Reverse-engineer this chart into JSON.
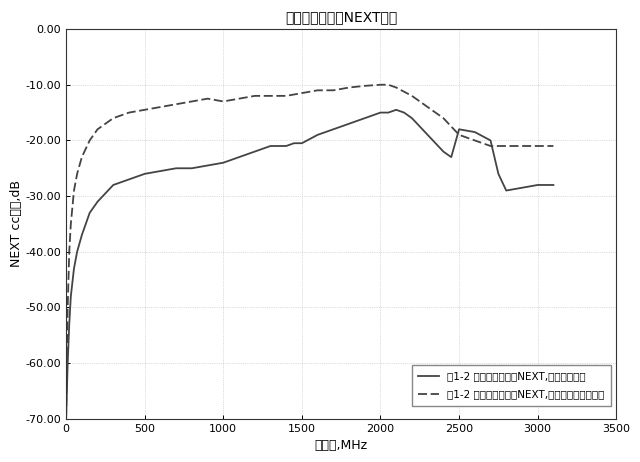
{
  "title": "コモンモード間NEXTロス",
  "xlabel": "周波数,MHz",
  "ylabel": "NEXT ccロス,dB",
  "xlim": [
    0,
    3500
  ],
  "ylim": [
    -70,
    0
  ],
  "xticks": [
    0,
    500,
    1000,
    1500,
    2000,
    2500,
    3000,
    3500
  ],
  "yticks": [
    0.0,
    -10.0,
    -20.0,
    -30.0,
    -40.0,
    -50.0,
    -60.0,
    -70.0
  ],
  "grid_color": "#bbbbbb",
  "background_color": "#ffffff",
  "legend_label_solid": "兴1-2 コモンモード間NEXT,分離した接地",
  "legend_label_dashed": "兴1-2 コモンモード間NEXT,分離していない接地",
  "solid_x": [
    0,
    5,
    10,
    20,
    30,
    50,
    70,
    100,
    150,
    200,
    300,
    400,
    500,
    600,
    700,
    800,
    900,
    1000,
    1100,
    1200,
    1300,
    1350,
    1400,
    1450,
    1500,
    1600,
    1700,
    1800,
    1900,
    2000,
    2050,
    2100,
    2150,
    2200,
    2300,
    2400,
    2450,
    2500,
    2600,
    2700,
    2750,
    2800,
    2900,
    3000,
    3100
  ],
  "solid_y": [
    -70,
    -65,
    -60,
    -53,
    -48,
    -43,
    -40,
    -37,
    -33,
    -31,
    -28,
    -27,
    -26,
    -25.5,
    -25,
    -25,
    -24.5,
    -24,
    -23,
    -22,
    -21,
    -21,
    -21,
    -20.5,
    -20.5,
    -19,
    -18,
    -17,
    -16,
    -15,
    -15,
    -14.5,
    -15,
    -16,
    -19,
    -22,
    -23,
    -18,
    -18.5,
    -20,
    -26,
    -29,
    -28.5,
    -28,
    -28
  ],
  "dashed_x": [
    0,
    5,
    10,
    20,
    30,
    50,
    70,
    100,
    150,
    200,
    300,
    400,
    500,
    600,
    700,
    800,
    900,
    1000,
    1100,
    1200,
    1300,
    1400,
    1500,
    1600,
    1700,
    1800,
    1900,
    2000,
    2050,
    2100,
    2200,
    2300,
    2400,
    2500,
    2600,
    2700,
    2800,
    2900,
    3000,
    3100
  ],
  "dashed_y": [
    -70,
    -58,
    -50,
    -40,
    -35,
    -29,
    -26,
    -23,
    -20,
    -18,
    -16,
    -15,
    -14.5,
    -14,
    -13.5,
    -13,
    -12.5,
    -13,
    -12.5,
    -12,
    -12,
    -12,
    -11.5,
    -11,
    -11,
    -10.5,
    -10.2,
    -10,
    -10,
    -10.5,
    -12,
    -14,
    -16,
    -19,
    -20,
    -21,
    -21,
    -21,
    -21,
    -21
  ],
  "line_color": "#444444",
  "line_width": 1.3,
  "fig_width": 6.4,
  "fig_height": 4.62,
  "dpi": 100
}
